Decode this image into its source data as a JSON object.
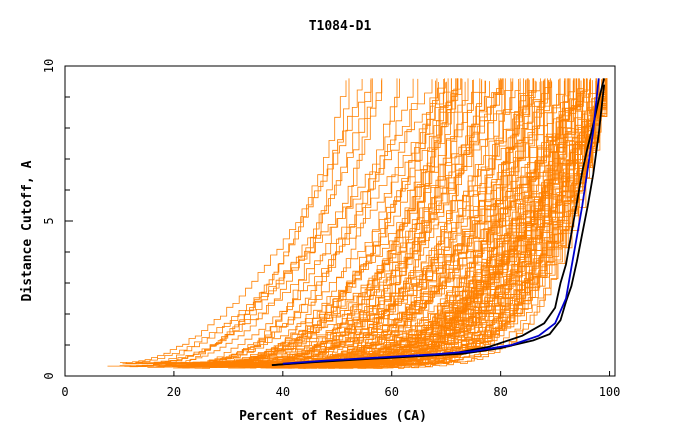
{
  "chart_data": {
    "type": "line",
    "title": "T1084-D1",
    "xlabel": "Percent of Residues (CA)",
    "ylabel": "Distance Cutoff, A",
    "xlim": [
      0,
      101
    ],
    "ylim": [
      0,
      10
    ],
    "x_ticks": [
      "0",
      "20",
      "40",
      "60",
      "80",
      "100"
    ],
    "y_ticks": [
      "0",
      "5",
      "10"
    ],
    "grid": false,
    "legend": "none",
    "colors": {
      "background_models": "#ff8000",
      "highlight_black": "#000000",
      "highlight_blue": "#0000cc",
      "axes": "#000000"
    },
    "background_series_count": 150,
    "highlight_series": [
      {
        "color": "black",
        "x": [
          38,
          45,
          55,
          65,
          72,
          78,
          84,
          88,
          90,
          91,
          92,
          93,
          94,
          95,
          96,
          97,
          98,
          99
        ],
        "y": [
          0.35,
          0.45,
          0.55,
          0.65,
          0.75,
          0.95,
          1.3,
          1.7,
          2.2,
          3.0,
          3.6,
          4.6,
          5.6,
          6.6,
          7.4,
          8.1,
          8.9,
          9.6
        ]
      },
      {
        "color": "black",
        "x": [
          38,
          46,
          56,
          66,
          73,
          80,
          86,
          89,
          91,
          92,
          93,
          94,
          95,
          96,
          97,
          98,
          99
        ],
        "y": [
          0.35,
          0.45,
          0.55,
          0.65,
          0.72,
          0.9,
          1.15,
          1.35,
          1.8,
          2.4,
          2.9,
          3.7,
          4.6,
          5.5,
          6.5,
          7.8,
          9.4
        ]
      },
      {
        "color": "blue",
        "x": [
          40,
          48,
          58,
          68,
          75,
          82,
          87,
          90,
          92,
          93,
          94,
          95,
          96,
          97,
          98
        ],
        "y": [
          0.4,
          0.5,
          0.6,
          0.7,
          0.8,
          1.0,
          1.3,
          1.7,
          2.5,
          3.5,
          4.5,
          5.5,
          6.7,
          7.9,
          9.6
        ]
      }
    ]
  }
}
